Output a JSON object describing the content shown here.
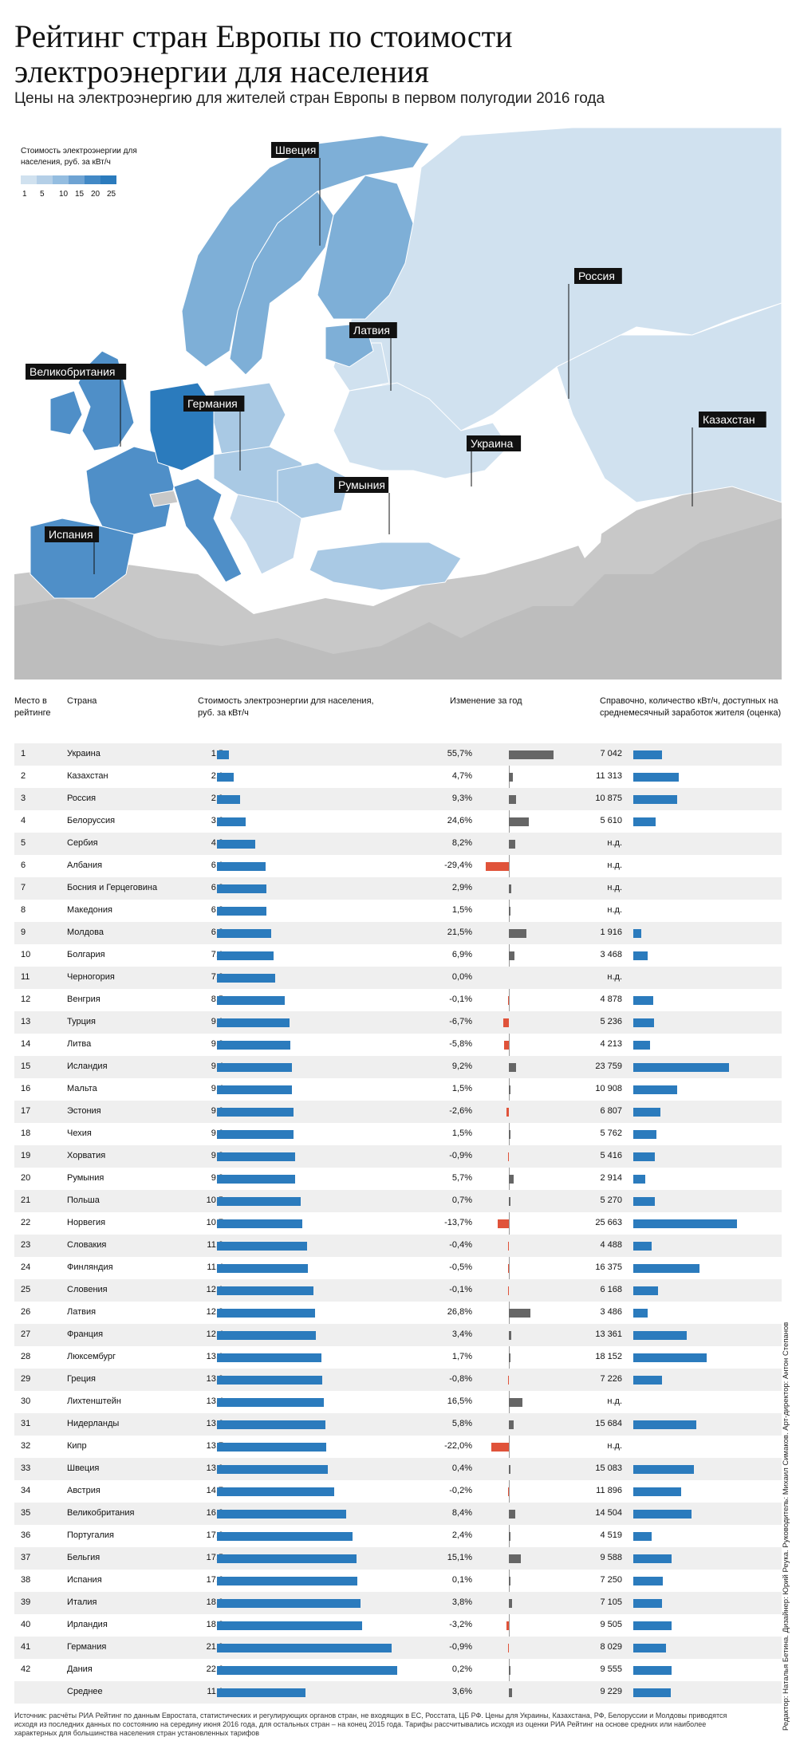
{
  "header": {
    "title": "Рейтинг стран Европы по стоимости электроэнергии для населения",
    "subtitle": "Цены на электроэнергию для жителей стран Европы в первом полугодии 2016 года"
  },
  "map": {
    "legend_title": "Стоимость электроэнергии для населения, руб. за кВт/ч",
    "legend_ticks": [
      "1",
      "5",
      "10",
      "15",
      "20",
      "25"
    ],
    "labels": [
      "Швеция",
      "Россия",
      "Латвия",
      "Великобритания",
      "Германия",
      "Казахстан",
      "Украина",
      "Румыния",
      "Испания"
    ],
    "colors": {
      "lightest": "#d0e1ef",
      "light": "#a9c9e4",
      "mid": "#7eafd7",
      "dark": "#4f8fc8",
      "darkest": "#2b7bbd",
      "land": "#c8c8c8",
      "sea": "#ffffff"
    }
  },
  "table": {
    "col_rank": "Место в рейтинге",
    "col_country": "Страна",
    "col_cost": "Стоимость электроэнергии для населения, руб. за кВт/ч",
    "col_change": "Изменение за год",
    "col_kwh": "Справочно, количество кВт/ч, доступных на среднемесячный заработок жителя (оценка)"
  },
  "chart_data": {
    "type": "table",
    "cost_color": "#2b7bbd",
    "positive_change_color": "#666666",
    "negative_change_color": "#e0533a",
    "rows": [
      {
        "rank": "1",
        "country": "Украина",
        "cost": "1,5",
        "change": "55,7%",
        "kwh": "7 042"
      },
      {
        "rank": "2",
        "country": "Казахстан",
        "cost": "2,1",
        "change": "4,7%",
        "kwh": "11 313"
      },
      {
        "rank": "3",
        "country": "Россия",
        "cost": "2,9",
        "change": "9,3%",
        "kwh": "10 875"
      },
      {
        "rank": "4",
        "country": "Белоруссия",
        "cost": "3,6",
        "change": "24,6%",
        "kwh": "5 610"
      },
      {
        "rank": "5",
        "country": "Сербия",
        "cost": "4,8",
        "change": "8,2%",
        "kwh": "н.д."
      },
      {
        "rank": "6",
        "country": "Албания",
        "cost": "6,1",
        "change": "-29,4%",
        "kwh": "н.д."
      },
      {
        "rank": "7",
        "country": "Босния и Герцеговина",
        "cost": "6,2",
        "change": "2,9%",
        "kwh": "н.д."
      },
      {
        "rank": "8",
        "country": "Македония",
        "cost": "6,2",
        "change": "1,5%",
        "kwh": "н.д."
      },
      {
        "rank": "9",
        "country": "Молдова",
        "cost": "6,8",
        "change": "21,5%",
        "kwh": "1 916"
      },
      {
        "rank": "10",
        "country": "Болгария",
        "cost": "7,1",
        "change": "6,9%",
        "kwh": "3 468"
      },
      {
        "rank": "11",
        "country": "Черногория",
        "cost": "7,3",
        "change": "0,0%",
        "kwh": "н.д."
      },
      {
        "rank": "12",
        "country": "Венгрия",
        "cost": "8,5",
        "change": "-0,1%",
        "kwh": "4 878"
      },
      {
        "rank": "13",
        "country": "Турция",
        "cost": "9,1",
        "change": "-6,7%",
        "kwh": "5 236"
      },
      {
        "rank": "14",
        "country": "Литва",
        "cost": "9,2",
        "change": "-5,8%",
        "kwh": "4 213"
      },
      {
        "rank": "15",
        "country": "Исландия",
        "cost": "9,4",
        "change": "9,2%",
        "kwh": "23 759"
      },
      {
        "rank": "16",
        "country": "Мальта",
        "cost": "9,4",
        "change": "1,5%",
        "kwh": "10 908"
      },
      {
        "rank": "17",
        "country": "Эстония",
        "cost": "9,6",
        "change": "-2,6%",
        "kwh": "6 807"
      },
      {
        "rank": "18",
        "country": "Чехия",
        "cost": "9,6",
        "change": "1,5%",
        "kwh": "5 762"
      },
      {
        "rank": "19",
        "country": "Хорватия",
        "cost": "9,8",
        "change": "-0,9%",
        "kwh": "5 416"
      },
      {
        "rank": "20",
        "country": "Румыния",
        "cost": "9,8",
        "change": "5,7%",
        "kwh": "2 914"
      },
      {
        "rank": "21",
        "country": "Польша",
        "cost": "10,5",
        "change": "0,7%",
        "kwh": "5 270"
      },
      {
        "rank": "22",
        "country": "Норвегия",
        "cost": "10,7",
        "change": "-13,7%",
        "kwh": "25 663"
      },
      {
        "rank": "23",
        "country": "Словакия",
        "cost": "11,3",
        "change": "-0,4%",
        "kwh": "4 488"
      },
      {
        "rank": "24",
        "country": "Финляндия",
        "cost": "11,4",
        "change": "-0,5%",
        "kwh": "16 375"
      },
      {
        "rank": "25",
        "country": "Словения",
        "cost": "12,1",
        "change": "-0,1%",
        "kwh": "6 168"
      },
      {
        "rank": "26",
        "country": "Латвия",
        "cost": "12,3",
        "change": "26,8%",
        "kwh": "3 486"
      },
      {
        "rank": "27",
        "country": "Франция",
        "cost": "12,4",
        "change": "3,4%",
        "kwh": "13 361"
      },
      {
        "rank": "28",
        "country": "Люксембург",
        "cost": "13,1",
        "change": "1,7%",
        "kwh": "18 152"
      },
      {
        "rank": "29",
        "country": "Греция",
        "cost": "13,2",
        "change": "-0,8%",
        "kwh": "7 226"
      },
      {
        "rank": "30",
        "country": "Лихтенштейн",
        "cost": "13,4",
        "change": "16,5%",
        "kwh": "н.д."
      },
      {
        "rank": "31",
        "country": "Нидерланды",
        "cost": "13,6",
        "change": "5,8%",
        "kwh": "15 684"
      },
      {
        "rank": "32",
        "country": "Кипр",
        "cost": "13,7",
        "change": "-22,0%",
        "kwh": "н.д."
      },
      {
        "rank": "33",
        "country": "Швеция",
        "cost": "13,9",
        "change": "0,4%",
        "kwh": "15 083"
      },
      {
        "rank": "34",
        "country": "Австрия",
        "cost": "14,7",
        "change": "-0,2%",
        "kwh": "11 896"
      },
      {
        "rank": "35",
        "country": "Великобритания",
        "cost": "16,2",
        "change": "8,4%",
        "kwh": "14 504"
      },
      {
        "rank": "36",
        "country": "Португалия",
        "cost": "17,0",
        "change": "2,4%",
        "kwh": "4 519"
      },
      {
        "rank": "37",
        "country": "Бельгия",
        "cost": "17,5",
        "change": "15,1%",
        "kwh": "9 588"
      },
      {
        "rank": "38",
        "country": "Испания",
        "cost": "17,6",
        "change": "0,1%",
        "kwh": "7 250"
      },
      {
        "rank": "39",
        "country": "Италия",
        "cost": "18,0",
        "change": "3,8%",
        "kwh": "7 105"
      },
      {
        "rank": "40",
        "country": "Ирландия",
        "cost": "18,2",
        "change": "-3,2%",
        "kwh": "9 505"
      },
      {
        "rank": "41",
        "country": "Германия",
        "cost": "21,9",
        "change": "-0,9%",
        "kwh": "8 029"
      },
      {
        "rank": "42",
        "country": "Дания",
        "cost": "22,6",
        "change": "0,2%",
        "kwh": "9 555"
      },
      {
        "rank": "",
        "country": "Среднее",
        "cost": "11,1",
        "change": "3,6%",
        "kwh": "9 229"
      }
    ]
  },
  "footer": {
    "source": "Источник: расчёты РИА Рейтинг по данным Евростата, статистических и регулирующих органов стран, не входящих в ЕС, Росстата, ЦБ РФ. Цены для Украины, Казахстана, РФ, Белоруссии и Молдовы приводятся исходя из последних данных по состоянию на середину июня 2016 года, для остальных стран – на конец 2015 года. Тарифы рассчитывались исходя из оценки РИА Рейтинг на основе средних или наиболее характерных для большинства населения стран установленных тарифов",
    "credits": "Редактор: Наталья Бетина. Дизайнер: Юрий Реука. Руководитель: Михаил Симаков. Арт-директор: Антон Степанов"
  }
}
